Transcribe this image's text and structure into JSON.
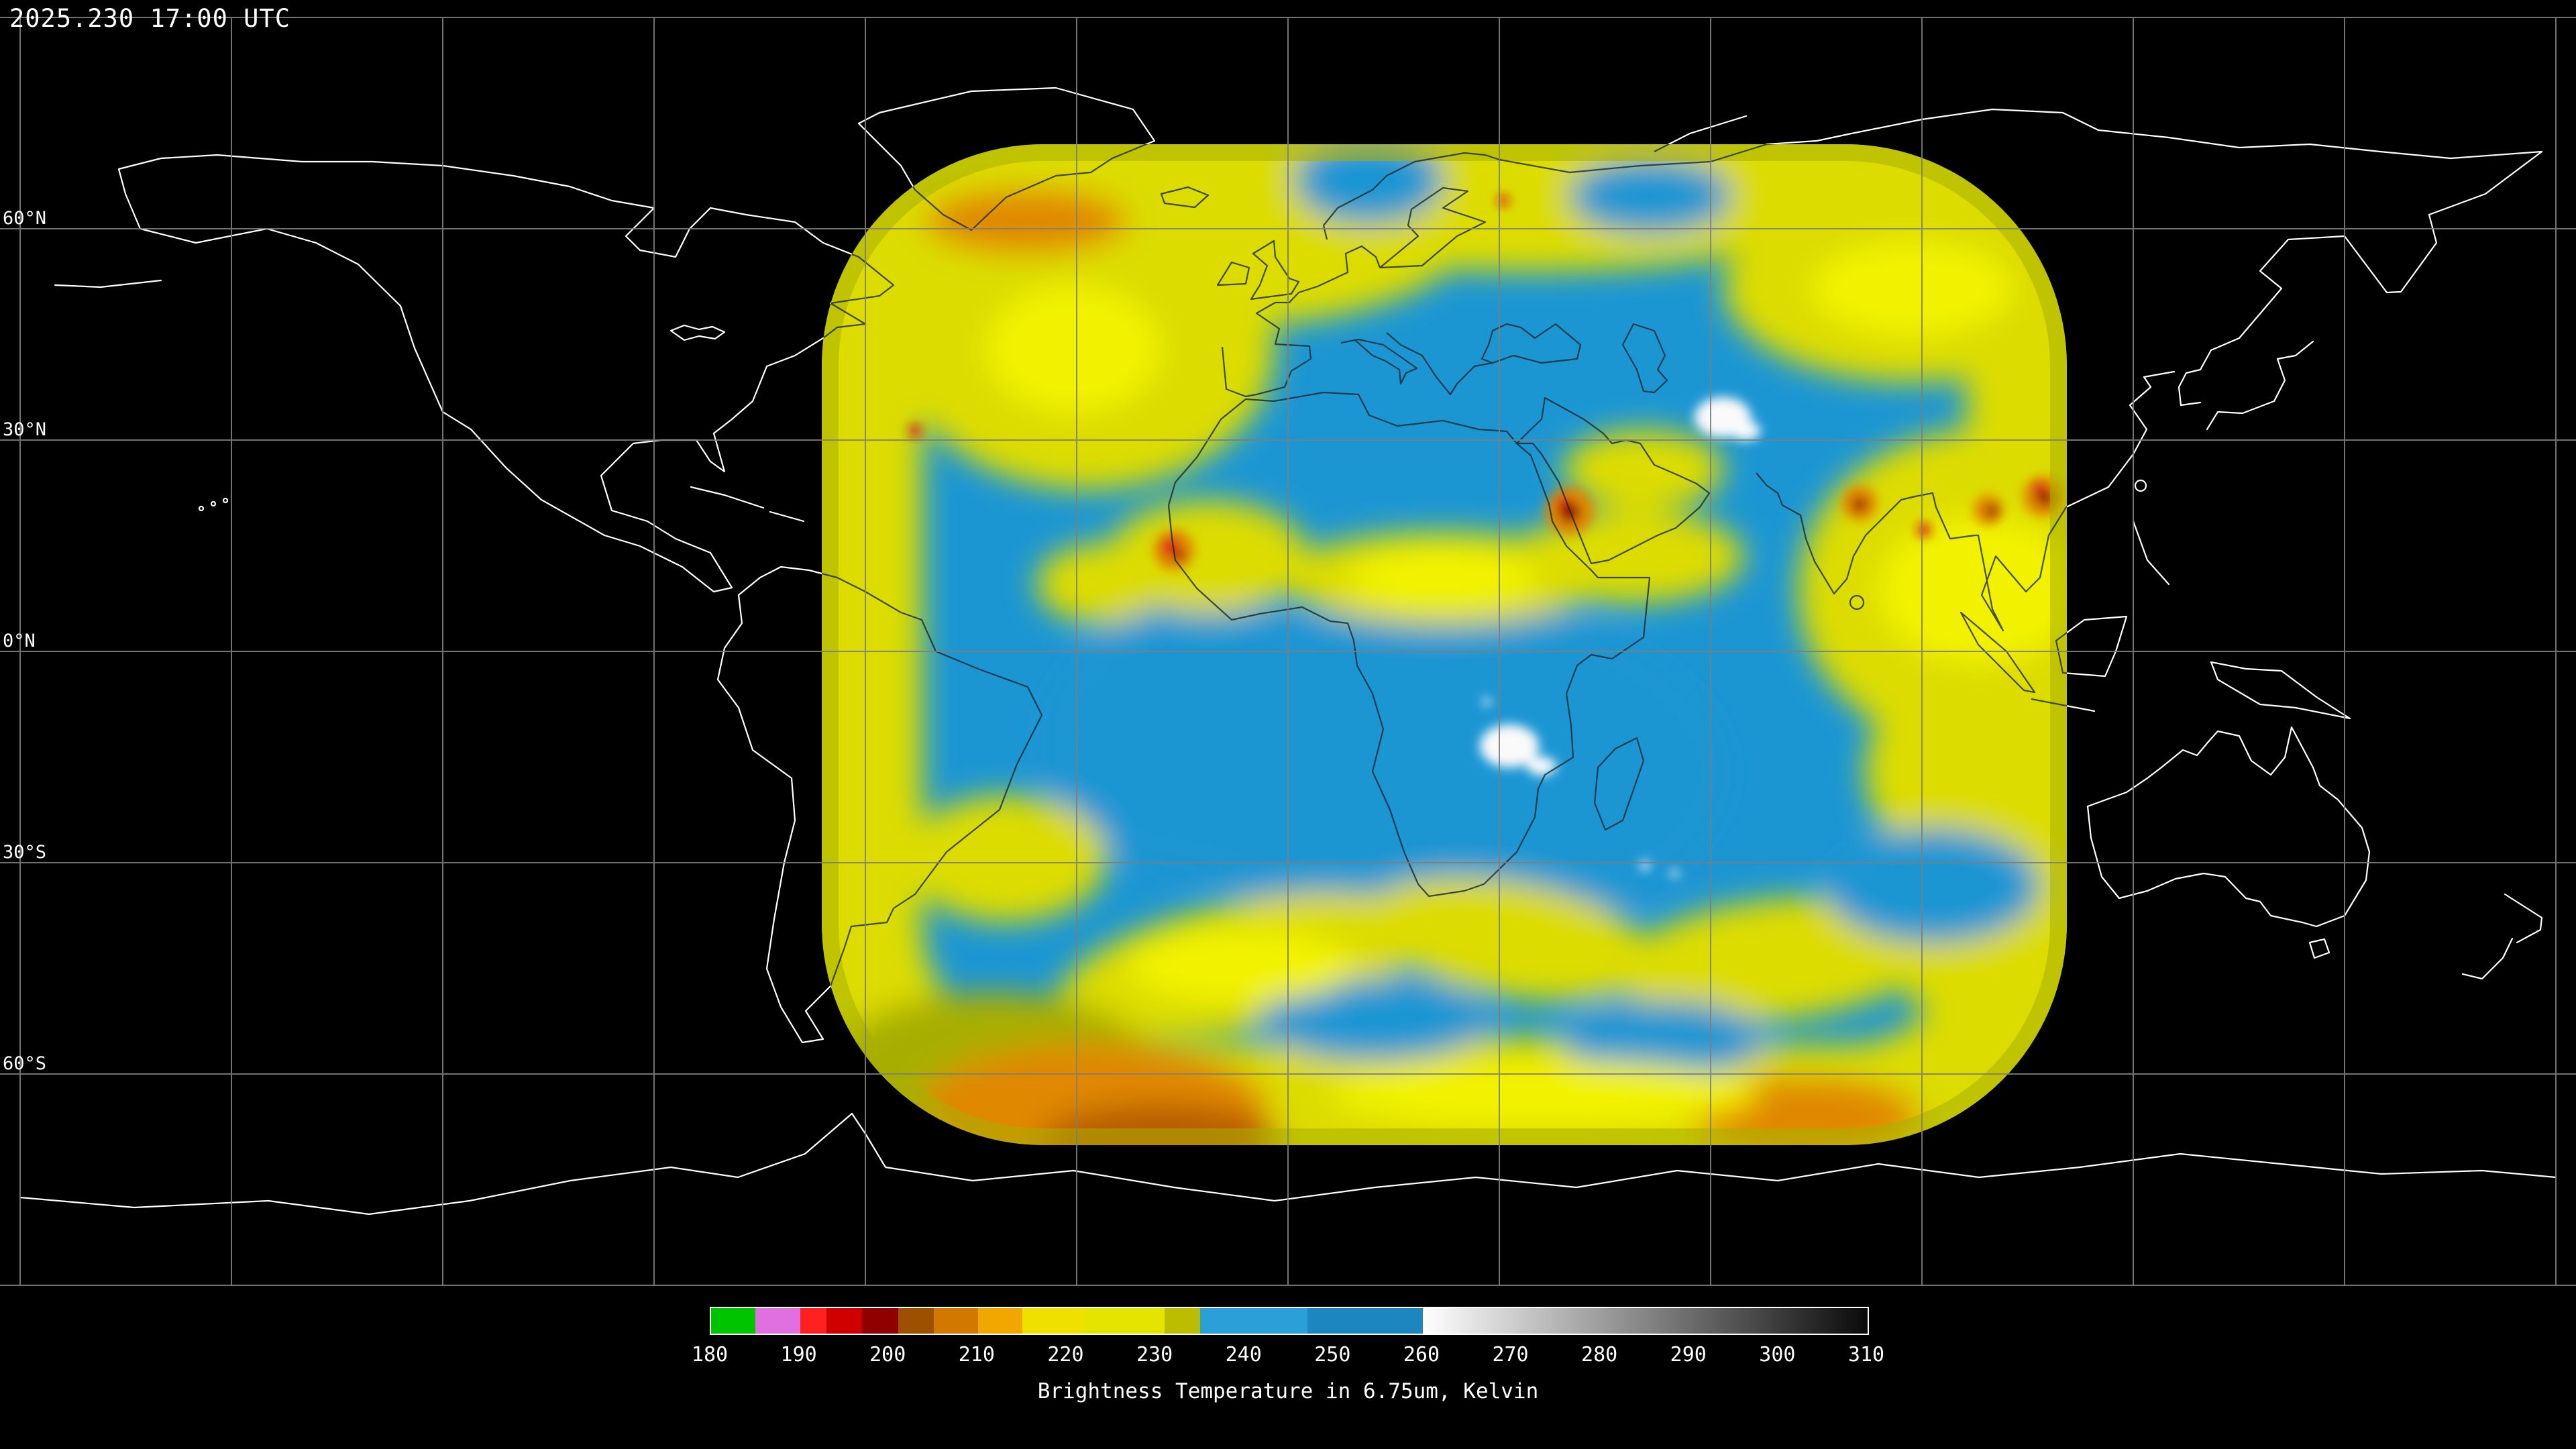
{
  "header": {
    "timestamp": "2025.230 17:00 UTC"
  },
  "map": {
    "latitude_labels": [
      "60°N",
      "30°N",
      "0°N",
      "30°S",
      "60°S"
    ]
  },
  "colorbar": {
    "caption": "Brightness Temperature in 6.75um, Kelvin",
    "unit": "Kelvin",
    "min": 180,
    "max": 310,
    "ticks": [
      180,
      190,
      200,
      210,
      220,
      230,
      240,
      250,
      260,
      270,
      280,
      290,
      300,
      310
    ],
    "segments": [
      {
        "from": 180,
        "to": 185,
        "color": "#00c400"
      },
      {
        "from": 185,
        "to": 190,
        "color": "#e070e0"
      },
      {
        "from": 190,
        "to": 193,
        "color": "#ff2020"
      },
      {
        "from": 193,
        "to": 197,
        "color": "#d00000"
      },
      {
        "from": 197,
        "to": 201,
        "color": "#900000"
      },
      {
        "from": 201,
        "to": 205,
        "color": "#9c5000"
      },
      {
        "from": 205,
        "to": 210,
        "color": "#d27800"
      },
      {
        "from": 210,
        "to": 215,
        "color": "#f0a800"
      },
      {
        "from": 215,
        "to": 222,
        "color": "#f0e000"
      },
      {
        "from": 222,
        "to": 231,
        "color": "#e4e400"
      },
      {
        "from": 231,
        "to": 235,
        "color": "#bcbc00"
      },
      {
        "from": 235,
        "to": 247,
        "color": "#2b9fd8"
      },
      {
        "from": 247,
        "to": 260,
        "color": "#1b86c0"
      },
      {
        "from": 260,
        "to": 310,
        "gradient": [
          "#ffffff",
          "#0a0a0a"
        ]
      }
    ]
  },
  "colors": {
    "background": "#000000",
    "coastline": "#ffffff",
    "coastline-over-data": "#18262c",
    "graticule": "#7d7d7d",
    "swath-blue": "#1c96d3",
    "swath-yellow": "#dcdc00",
    "swath-bright-yellow": "#f2f200",
    "swath-olive": "#a8ae00",
    "swath-orange": "#e08800",
    "swath-dkorange": "#b85c00",
    "swath-red": "#dd1414",
    "swath-dkred": "#8f0000",
    "swath-white": "#fafafa"
  }
}
